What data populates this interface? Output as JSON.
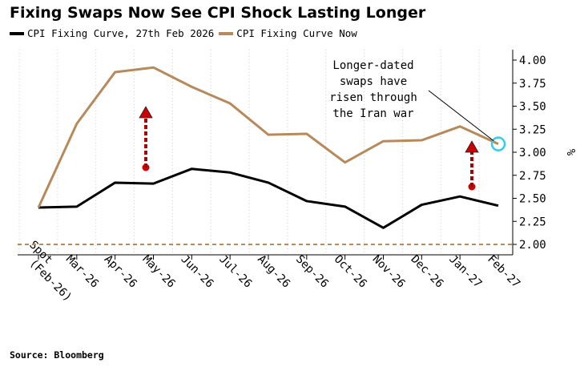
{
  "title": "Fixing Swaps Now See CPI Shock Lasting Longer",
  "source": "Source: Bloomberg",
  "colors": {
    "series_feb": "#000000",
    "series_now": "#B8895A",
    "reference_line": "#B8895A",
    "arrow": "#CC0000",
    "highlight": "#33CCEE"
  },
  "chart_data": {
    "type": "line",
    "title": "Fixing Swaps Now See CPI Shock Lasting Longer",
    "categories": [
      "Spot (Feb-26)",
      "Mar-26",
      "Apr-26",
      "May-26",
      "Jun-26",
      "Jul-26",
      "Aug-26",
      "Sep-26",
      "Oct-26",
      "Nov-26",
      "Dec-26",
      "Jan-27",
      "Feb-27"
    ],
    "series": [
      {
        "name": "CPI Fixing Curve, 27th Feb 2026",
        "color": "#000000",
        "values": [
          2.4,
          2.41,
          2.67,
          2.66,
          2.82,
          2.78,
          2.67,
          2.47,
          2.41,
          2.18,
          2.43,
          2.52,
          2.42
        ]
      },
      {
        "name": "CPI Fixing Curve Now",
        "color": "#B8895A",
        "values": [
          2.4,
          3.31,
          3.87,
          3.92,
          3.71,
          3.53,
          3.19,
          3.2,
          2.89,
          3.12,
          3.13,
          3.28,
          3.09
        ]
      }
    ],
    "reference_line": {
      "value": 2.0,
      "style": "dashed"
    },
    "yticks": [
      "2.00",
      "2.25",
      "2.50",
      "2.75",
      "3.00",
      "3.25",
      "3.50",
      "3.75",
      "4.00"
    ],
    "ylim": [
      1.95,
      4.08
    ],
    "yunit": "%",
    "y_axis_side": "right",
    "grid": "vertical dotted",
    "legend_position": "top-left",
    "annotation": {
      "lines": [
        "Longer-dated",
        "swaps have",
        "risen through",
        "the Iran war"
      ],
      "points_to": "Feb-27"
    }
  }
}
